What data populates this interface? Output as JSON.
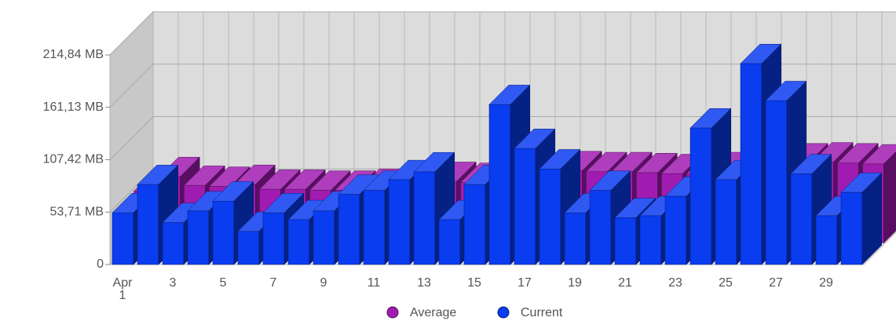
{
  "chart_data": {
    "type": "bar3d",
    "categories": [
      "Apr 1",
      null,
      "3",
      null,
      "5",
      null,
      "7",
      null,
      "9",
      null,
      "11",
      null,
      "13",
      null,
      "15",
      null,
      "17",
      null,
      "19",
      null,
      "21",
      null,
      "23",
      null,
      "25",
      null,
      "27",
      null,
      "29",
      null
    ],
    "series": [
      {
        "name": "Average",
        "color": "#a01cb0",
        "values": [
          53,
          68,
          59,
          58,
          60,
          55,
          55,
          54,
          54,
          56,
          58,
          60,
          63,
          62,
          63,
          69,
          72,
          74,
          73,
          73,
          72,
          71,
          71,
          73,
          74,
          79,
          82,
          83,
          82,
          81
        ]
      },
      {
        "name": "Current",
        "color": "#0a3cf0",
        "values": [
          53,
          82,
          43,
          55,
          65,
          34,
          53,
          46,
          55,
          72,
          76,
          87,
          95,
          46,
          82,
          164,
          119,
          98,
          53,
          76,
          48,
          50,
          70,
          140,
          87,
          206,
          168,
          93,
          50,
          74
        ]
      }
    ],
    "ylim": [
      0,
      214.84
    ],
    "yticks": [
      0,
      {
        "value": 53.71,
        "label": "53,71 MB"
      },
      {
        "value": 107.42,
        "label": "107,42 MB"
      },
      {
        "value": 161.13,
        "label": "161,13 MB"
      },
      {
        "value": 214.84,
        "label": "214,84 MB"
      }
    ],
    "grid": true,
    "legend": "bottom"
  }
}
